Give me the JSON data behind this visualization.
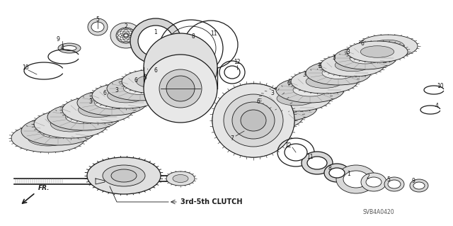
{
  "bg_color": "#ffffff",
  "line_color": "#1a1a1a",
  "diagram_code": "SVB4A0420",
  "label_3rd5th": "3rd-5th CLUTCH",
  "fr_label": "FR.",
  "fill_light": "#e8e8e8",
  "fill_mid": "#cccccc",
  "fill_dark": "#aaaaaa",
  "fill_hatch": "#bbbbbb"
}
